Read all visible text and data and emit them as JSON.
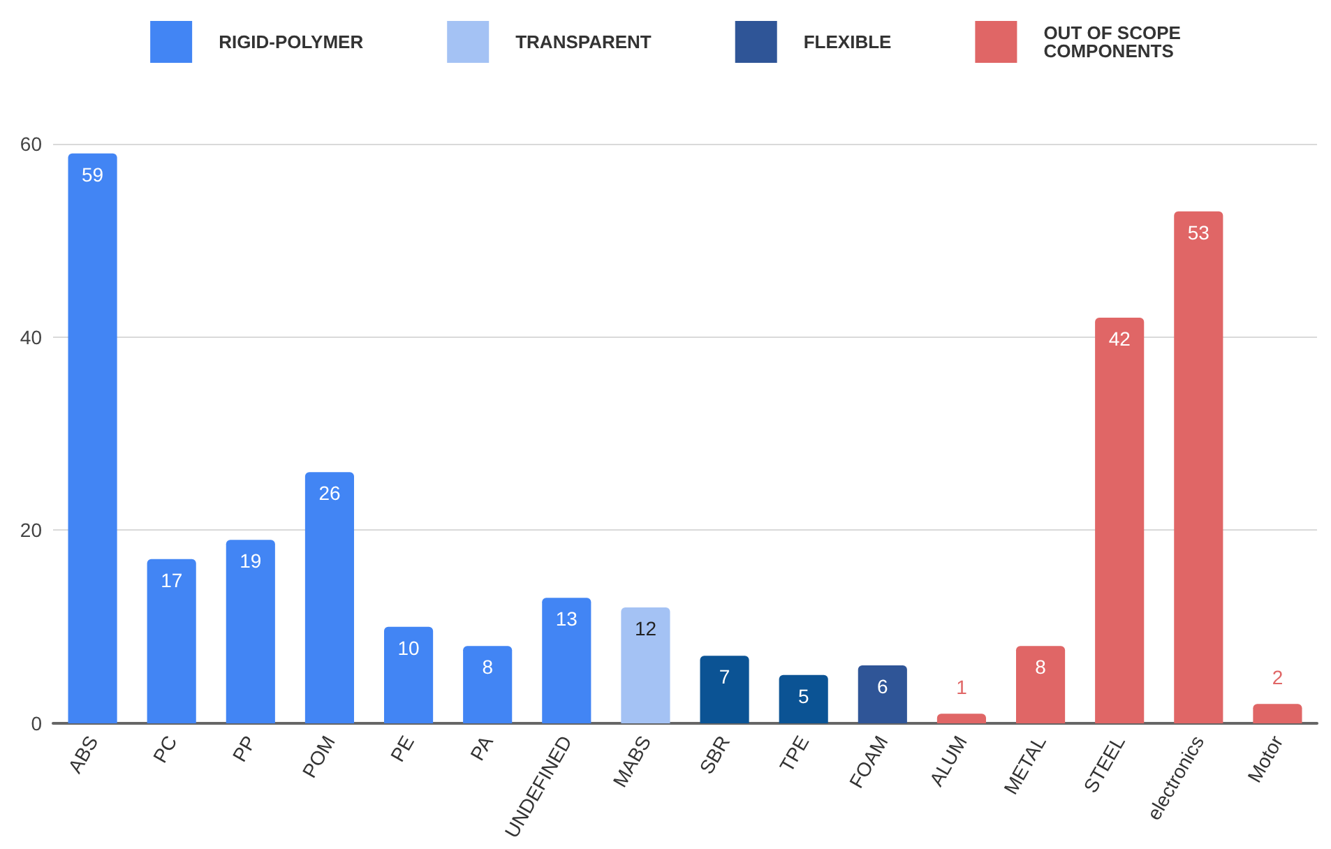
{
  "chart_data": {
    "type": "bar",
    "categories": [
      "ABS",
      "PC",
      "PP",
      "POM",
      "PE",
      "PA",
      "UNDEFINED",
      "MABS",
      "SBR",
      "TPE",
      "FOAM",
      "ALUM",
      "METAL",
      "STEEL",
      "electronics",
      "Motor"
    ],
    "series": [
      {
        "name": "RIGID-POLYMER",
        "color": "#4285f4",
        "values": [
          59,
          17,
          19,
          26,
          10,
          8,
          13,
          null,
          null,
          null,
          null,
          null,
          null,
          null,
          null,
          null
        ]
      },
      {
        "name": "TRANSPARENT",
        "color": "#a4c2f4",
        "values": [
          null,
          null,
          null,
          null,
          null,
          null,
          null,
          12,
          null,
          null,
          null,
          null,
          null,
          null,
          null,
          null
        ]
      },
      {
        "name": "FLEXIBLE",
        "color": "#2f5597",
        "colors": [
          null,
          null,
          null,
          null,
          null,
          null,
          null,
          null,
          "#0b5394",
          "#0b5394",
          "#2f5597",
          null,
          null,
          null,
          null,
          null
        ],
        "values": [
          null,
          null,
          null,
          null,
          null,
          null,
          null,
          null,
          7,
          5,
          6,
          null,
          null,
          null,
          null,
          null
        ]
      },
      {
        "name": "OUT OF SCOPE\nCOMPONENTS",
        "color": "#e06666",
        "values": [
          null,
          null,
          null,
          null,
          null,
          null,
          null,
          null,
          null,
          null,
          null,
          1,
          8,
          42,
          53,
          2
        ]
      }
    ],
    "ylim": [
      0,
      60
    ],
    "yticks": [
      0,
      20,
      40,
      60
    ],
    "grid": "y",
    "legend": "top",
    "data_labels": true
  }
}
